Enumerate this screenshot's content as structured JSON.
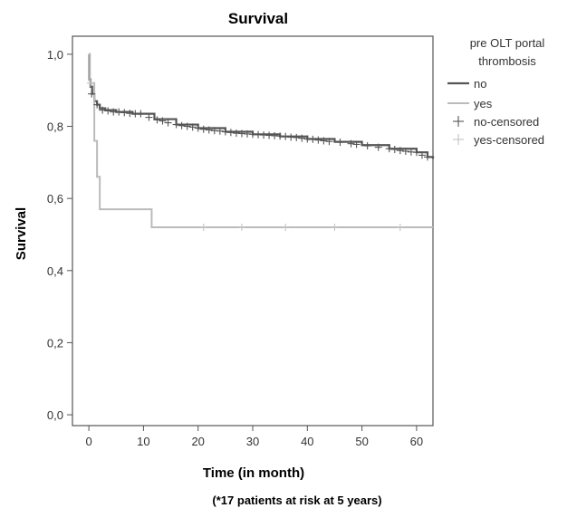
{
  "chart_data": {
    "type": "line",
    "title": "Survival",
    "xlabel": "Time (in month)",
    "ylabel": "Survival",
    "footnote": "(*17 patients at risk at 5 years)",
    "xlim": [
      -3,
      63
    ],
    "ylim": [
      -0.03,
      1.05
    ],
    "x_ticks": [
      0,
      10,
      20,
      30,
      40,
      50,
      60
    ],
    "y_ticks": [
      0.0,
      0.2,
      0.4,
      0.6,
      0.8,
      1.0
    ],
    "y_tick_labels": [
      "0,0",
      "0,2",
      "0,4",
      "0,6",
      "0,8",
      "1,0"
    ],
    "grid": false,
    "legend": {
      "title": "pre OLT portal thrombosis",
      "placement": "right",
      "entries": [
        "no",
        "yes",
        "no-censored",
        "yes-censored"
      ]
    },
    "series": [
      {
        "name": "no",
        "color": "#555555",
        "step": true,
        "x": [
          0,
          0.1,
          0.3,
          0.6,
          1,
          1.5,
          2,
          3,
          5,
          8,
          12,
          16,
          20,
          25,
          30,
          35,
          40,
          45,
          50,
          55,
          60,
          62,
          63
        ],
        "y": [
          1.0,
          0.93,
          0.91,
          0.89,
          0.87,
          0.86,
          0.85,
          0.845,
          0.84,
          0.835,
          0.82,
          0.805,
          0.795,
          0.785,
          0.778,
          0.772,
          0.765,
          0.757,
          0.748,
          0.738,
          0.728,
          0.715,
          0.71
        ]
      },
      {
        "name": "yes",
        "color": "#bbbbbb",
        "step": true,
        "x": [
          0,
          0.2,
          1,
          1.5,
          2,
          11.5,
          63
        ],
        "y": [
          1.0,
          0.92,
          0.76,
          0.66,
          0.57,
          0.52,
          0.52
        ]
      }
    ],
    "censored": [
      {
        "name": "no-censored",
        "color": "#555555",
        "x": [
          0.5,
          1.5,
          2.5,
          3.5,
          4.5,
          5.5,
          6.5,
          7.5,
          8.5,
          9.5,
          11,
          12.5,
          13.5,
          14.5,
          16,
          17,
          18,
          19,
          20,
          21,
          22,
          23,
          24,
          25,
          26,
          27,
          28,
          29,
          30,
          31,
          32,
          33,
          34,
          35,
          36,
          37,
          38,
          39,
          40,
          41,
          42,
          43,
          44,
          46,
          48,
          49,
          51,
          53,
          55,
          56,
          57,
          58,
          59,
          60,
          61,
          62
        ],
        "y": [
          0.89,
          0.86,
          0.845,
          0.843,
          0.84,
          0.84,
          0.838,
          0.836,
          0.835,
          0.835,
          0.825,
          0.818,
          0.815,
          0.81,
          0.805,
          0.802,
          0.8,
          0.798,
          0.795,
          0.792,
          0.79,
          0.788,
          0.787,
          0.785,
          0.783,
          0.781,
          0.78,
          0.779,
          0.778,
          0.777,
          0.776,
          0.775,
          0.774,
          0.773,
          0.772,
          0.77,
          0.769,
          0.767,
          0.765,
          0.764,
          0.762,
          0.76,
          0.758,
          0.756,
          0.752,
          0.75,
          0.746,
          0.742,
          0.738,
          0.736,
          0.733,
          0.731,
          0.729,
          0.728,
          0.72,
          0.715
        ]
      },
      {
        "name": "yes-censored",
        "color": "#c4c4c4",
        "x": [
          0.3,
          21,
          28,
          36,
          45,
          57
        ],
        "y": [
          0.92,
          0.52,
          0.52,
          0.52,
          0.52,
          0.52
        ]
      }
    ]
  }
}
